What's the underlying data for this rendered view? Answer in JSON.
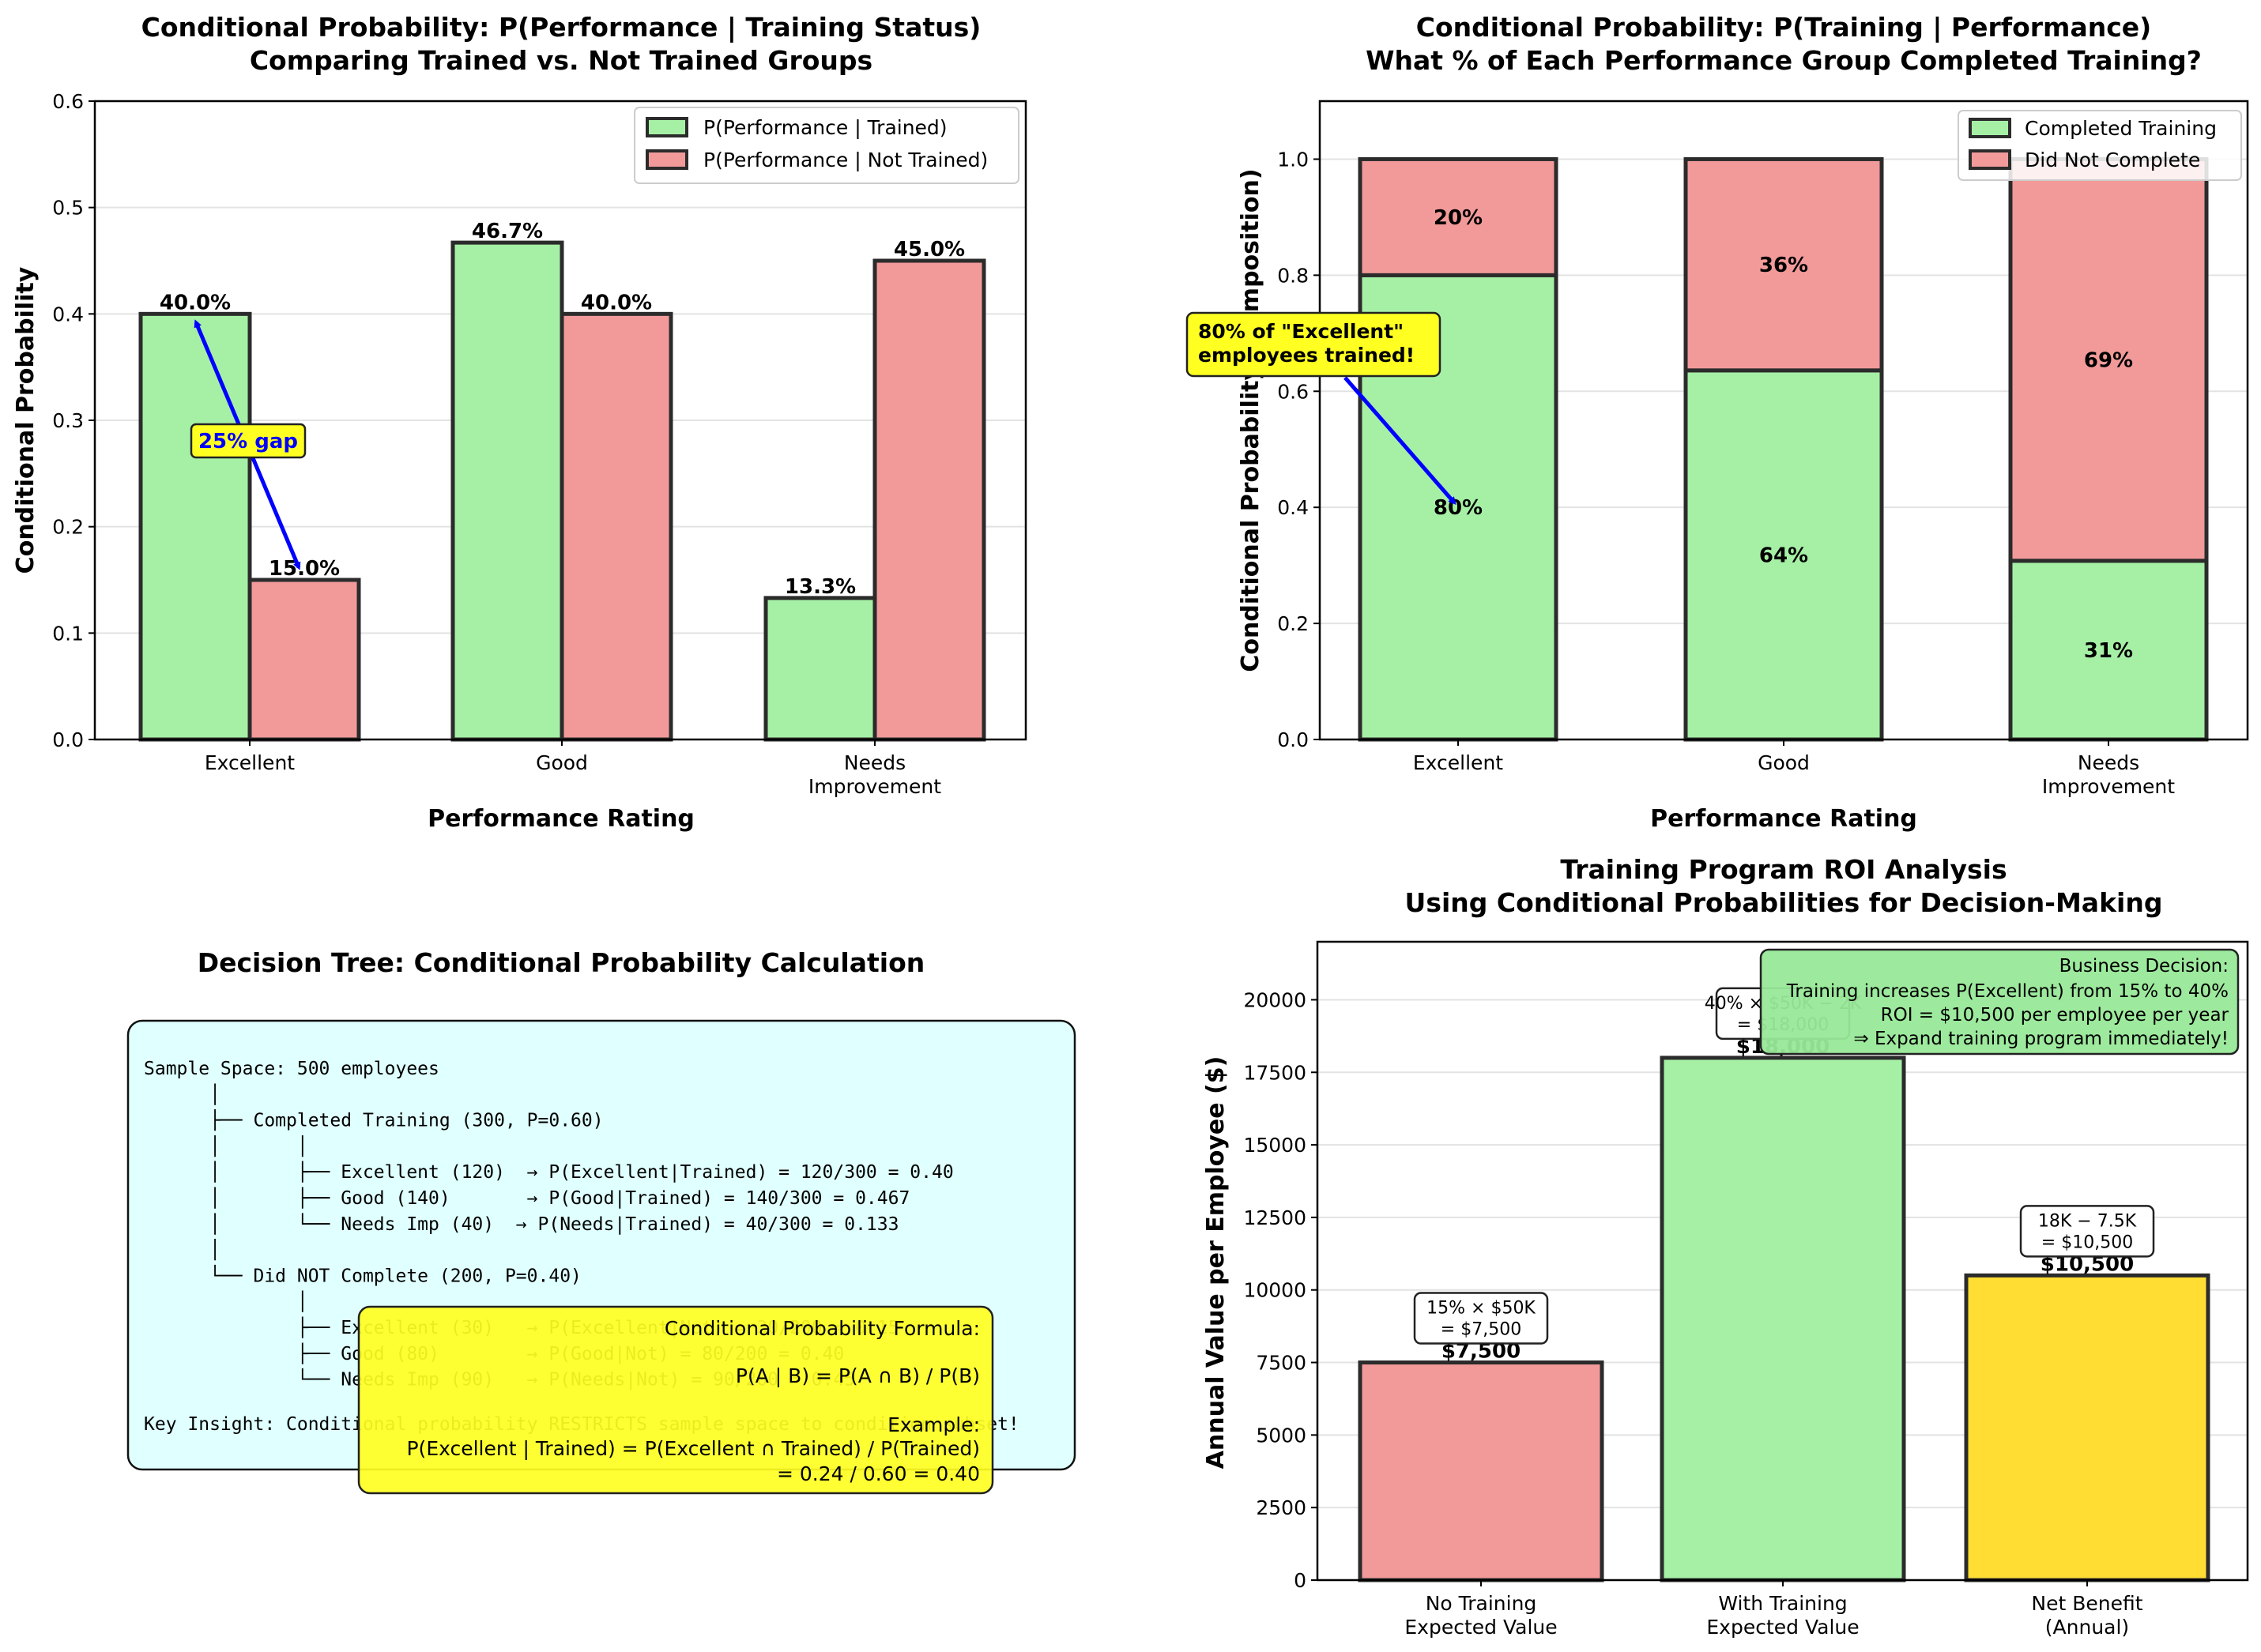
{
  "colors": {
    "trained": "#a6f0a6",
    "not_trained": "#f29a9a",
    "net_benefit": "#ffdd33",
    "edge": "#2b2b2b",
    "annotation_yellow": "#ffff22",
    "arrow_blue": "#0000ff",
    "tree_box": "#e0ffff",
    "decision_box": "#98e898",
    "grid": "#e3e3e3"
  },
  "chart_data": [
    {
      "id": "performance_given_training",
      "type": "bar",
      "title": "Conditional Probability: P(Performance | Training Status)",
      "subtitle": "Comparing Trained vs. Not Trained Groups",
      "xlabel": "Performance Rating",
      "ylabel": "Conditional Probability",
      "ylim": [
        0,
        0.6
      ],
      "yticks": [
        "0.0",
        "0.1",
        "0.2",
        "0.3",
        "0.4",
        "0.5",
        "0.6"
      ],
      "categories": [
        "Excellent",
        "Good",
        "Needs\nImprovement"
      ],
      "series": [
        {
          "name": "P(Performance | Trained)",
          "values": [
            0.4,
            0.467,
            0.133
          ],
          "labels": [
            "40.0%",
            "46.7%",
            "13.3%"
          ]
        },
        {
          "name": "P(Performance | Not Trained)",
          "values": [
            0.15,
            0.4,
            0.45
          ],
          "labels": [
            "15.0%",
            "40.0%",
            "45.0%"
          ]
        }
      ],
      "legend": "top-right",
      "grid": "y",
      "annotation": {
        "text": "25% gap",
        "from": 0.15,
        "to": 0.4
      }
    },
    {
      "id": "training_given_performance",
      "type": "bar",
      "stacked": true,
      "title": "Conditional Probability: P(Training | Performance)",
      "subtitle": "What % of Each Performance Group Completed Training?",
      "xlabel": "Performance Rating",
      "ylabel": "Conditional Probability (Composition)",
      "ylim": [
        0,
        1.1
      ],
      "yticks": [
        "0.0",
        "0.2",
        "0.4",
        "0.6",
        "0.8",
        "1.0"
      ],
      "categories": [
        "Excellent",
        "Good",
        "Needs\nImprovement"
      ],
      "series": [
        {
          "name": "Completed Training",
          "values": [
            0.8,
            0.636,
            0.308
          ],
          "labels": [
            "80%",
            "64%",
            "31%"
          ]
        },
        {
          "name": "Did Not Complete",
          "values": [
            0.2,
            0.364,
            0.692
          ],
          "labels": [
            "20%",
            "36%",
            "69%"
          ]
        }
      ],
      "legend": "top-right",
      "grid": "y",
      "annotation": {
        "text": "80% of \"Excellent\"\nemployees trained!"
      }
    },
    {
      "id": "roi_analysis",
      "type": "bar",
      "title": "Training Program ROI Analysis",
      "subtitle": "Using Conditional Probabilities for Decision-Making",
      "xlabel": "",
      "ylabel": "Annual Value per Employee ($)",
      "ylim": [
        0,
        22000
      ],
      "yticks": [
        "0",
        "2500",
        "5000",
        "7500",
        "10000",
        "12500",
        "15000",
        "17500",
        "20000"
      ],
      "categories": [
        "No Training\nExpected Value",
        "With Training\nExpected Value",
        "Net Benefit\n(Annual)"
      ],
      "values": [
        7500,
        18000,
        10500
      ],
      "labels": [
        "$7,500",
        "$18,000",
        "$10,500"
      ],
      "calc_notes": [
        "15% × $50K\n= $7,500",
        "40% × $50K − 2K\n= $18,000",
        "18K − 7.5K\n= $10,500"
      ],
      "grid": "y",
      "decision_box": {
        "title": "Business Decision:",
        "lines": [
          "Training increases P(Excellent) from 15% to 40%",
          "ROI = $10,500 per employee per year",
          "⇒ Expand training program immediately!"
        ]
      }
    }
  ],
  "decision_tree": {
    "title": "Decision Tree: Conditional Probability Calculation",
    "lines": [
      "Sample Space: 500 employees",
      "      │",
      "      ├── Completed Training (300, P=0.60)",
      "      │       │",
      "      │       ├── Excellent (120)  → P(Excellent|Trained) = 120/300 = 0.40",
      "      │       ├── Good (140)       → P(Good|Trained) = 140/300 = 0.467",
      "      │       └── Needs Imp (40)  → P(Needs|Trained) = 40/300 = 0.133",
      "      │",
      "      └── Did NOT Complete (200, P=0.40)",
      "              │",
      "              ├── Excellent (30)   → P(Excellent|Not) = 30/200 = 0.15",
      "              ├── Good (80)        → P(Good|Not) = 80/200 = 0.40",
      "              └── Needs Imp (90)   → P(Needs|Not) = 90/200 = 0.45",
      "",
      "Key Insight: Conditional probability RESTRICTS sample space to condition subset!"
    ],
    "formula_box": {
      "heading": "Conditional Probability Formula:",
      "formula": "P(A | B) = P(A ∩ B) / P(B)",
      "example_heading": "Example:",
      "example_line1": "P(Excellent | Trained) = P(Excellent ∩ Trained) / P(Trained)",
      "example_line2": "= 0.24 / 0.60 = 0.40"
    }
  }
}
